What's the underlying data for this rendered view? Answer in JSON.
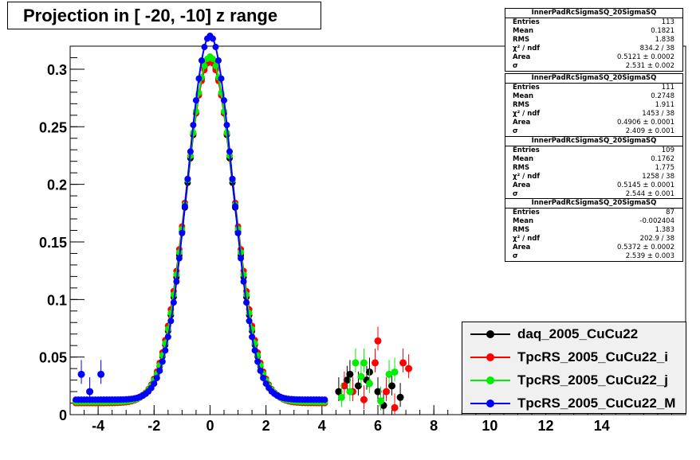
{
  "title": "Projection in [ -20, -10] z range",
  "colors": {
    "daq": "#000000",
    "tpcrs_i": "#ff0000",
    "tpcrs_j": "#00ee00",
    "tpcrs_m": "#0000ff"
  },
  "stats_boxes": [
    {
      "name": "InnerPadRcSigmaSQ_20SigmaSQ",
      "rows": [
        [
          "Entries",
          "113"
        ],
        [
          "Mean",
          "0.1821"
        ],
        [
          "RMS",
          "1.838"
        ],
        [
          "χ² / ndf",
          "834.2 / 38"
        ],
        [
          "Area",
          "0.5121 ± 0.0002"
        ],
        [
          "σ",
          "2.531 ± 0.002"
        ]
      ]
    },
    {
      "name": "InnerPadRcSigmaSQ_20SigmaSQ",
      "rows": [
        [
          "Entries",
          "111"
        ],
        [
          "Mean",
          "0.2748"
        ],
        [
          "RMS",
          "1.911"
        ],
        [
          "χ² / ndf",
          "1453 / 38"
        ],
        [
          "Area",
          "0.4906 ± 0.0001"
        ],
        [
          "σ",
          "2.409 ± 0.001"
        ]
      ]
    },
    {
      "name": "InnerPadRcSigmaSQ_20SigmaSQ",
      "rows": [
        [
          "Entries",
          "109"
        ],
        [
          "Mean",
          "0.1762"
        ],
        [
          "RMS",
          "1.775"
        ],
        [
          "χ² / ndf",
          "1258 / 38"
        ],
        [
          "Area",
          "0.5145 ± 0.0001"
        ],
        [
          "σ",
          "2.544 ± 0.001"
        ]
      ]
    },
    {
      "name": "InnerPadRcSigmaSQ_20SigmaSQ",
      "rows": [
        [
          "Entries",
          "87"
        ],
        [
          "Mean",
          "-0.002404"
        ],
        [
          "RMS",
          "1.383"
        ],
        [
          "χ² / ndf",
          "202.9 / 38"
        ],
        [
          "Area",
          "0.5372 ± 0.0002"
        ],
        [
          "σ",
          "2.539 ± 0.003"
        ]
      ]
    }
  ],
  "chart_data": {
    "type": "scatter",
    "xlim": [
      -5,
      17
    ],
    "ylim": [
      0,
      0.32
    ],
    "x_ticks": [
      "-4",
      "-2",
      "0",
      "2",
      "4",
      "6",
      "8",
      "10",
      "12",
      "14"
    ],
    "y_ticks": [
      "0",
      "0.05",
      "0.1",
      "0.15",
      "0.2",
      "0.25",
      "0.3"
    ],
    "legend_position": "bottom-right",
    "series": [
      {
        "name": "daq_2005_CuCu22",
        "color": "#000000",
        "peak": 0.298,
        "sigma": 0.84,
        "tail": 0.012,
        "outliers": [
          [
            4.6,
            0.02
          ],
          [
            4.9,
            0.03
          ],
          [
            5.0,
            0.035
          ],
          [
            5.3,
            0.025
          ],
          [
            5.6,
            0.03
          ],
          [
            5.7,
            0.037
          ],
          [
            6.0,
            0.02
          ],
          [
            6.2,
            0.008
          ],
          [
            6.5,
            0.025
          ],
          [
            6.8,
            0.015
          ]
        ]
      },
      {
        "name": "TpcRS_2005_CuCu22_i",
        "color": "#ff0000",
        "peak": 0.297,
        "sigma": 0.87,
        "tail": 0.01,
        "outliers": [
          [
            4.8,
            0.025
          ],
          [
            5.1,
            0.02
          ],
          [
            5.5,
            0.013
          ],
          [
            5.9,
            0.045
          ],
          [
            6.0,
            0.064
          ],
          [
            6.3,
            0.02
          ],
          [
            6.6,
            0.006
          ],
          [
            6.9,
            0.045
          ],
          [
            7.1,
            0.04
          ]
        ]
      },
      {
        "name": "TpcRS_2005_CuCu22_j",
        "color": "#00ee00",
        "peak": 0.3,
        "sigma": 0.85,
        "tail": 0.011,
        "outliers": [
          [
            4.7,
            0.015
          ],
          [
            5.0,
            0.02
          ],
          [
            5.2,
            0.045
          ],
          [
            5.4,
            0.033
          ],
          [
            5.5,
            0.045
          ],
          [
            5.7,
            0.027
          ],
          [
            6.1,
            0.012
          ],
          [
            6.4,
            0.035
          ],
          [
            6.6,
            0.037
          ]
        ]
      },
      {
        "name": "TpcRS_2005_CuCu22_M",
        "color": "#0000ff",
        "peak": 0.316,
        "sigma": 0.8,
        "tail": 0.013,
        "outliers": [
          [
            -4.6,
            0.035
          ],
          [
            -3.9,
            0.035
          ],
          [
            -4.3,
            0.02
          ]
        ]
      }
    ]
  }
}
